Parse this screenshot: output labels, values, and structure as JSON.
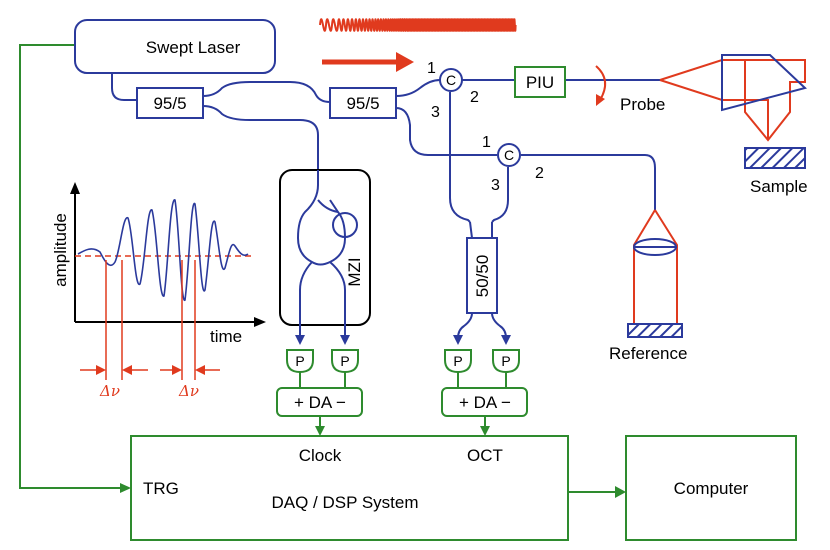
{
  "labels": {
    "swept_laser": "Swept Laser",
    "coupler1": "95/5",
    "coupler2": "95/5",
    "circ1": "C",
    "circ2": "C",
    "piu": "PIU",
    "probe": "Probe",
    "sample": "Sample",
    "reference": "Reference",
    "mzi": "MZI",
    "coupler50": "50/50",
    "amplitude": "amplitude",
    "time": "time",
    "delta1": "Δν",
    "delta2": "Δν",
    "p1": "P",
    "p2": "P",
    "p3": "P",
    "p4": "P",
    "da1": "+ DA −",
    "da2": "+ DA −",
    "clock": "Clock",
    "oct": "OCT",
    "trg": "TRG",
    "daq": "DAQ / DSP System",
    "computer": "Computer",
    "port_c1_1": "1",
    "port_c1_2": "2",
    "port_c1_3": "3",
    "port_c2_1": "1",
    "port_c2_2": "2",
    "port_c2_3": "3"
  },
  "colors": {
    "fiber": "#2b3a9c",
    "signal": "#2e8b2e",
    "optics": "#e03a1e",
    "frame": "#000000"
  }
}
